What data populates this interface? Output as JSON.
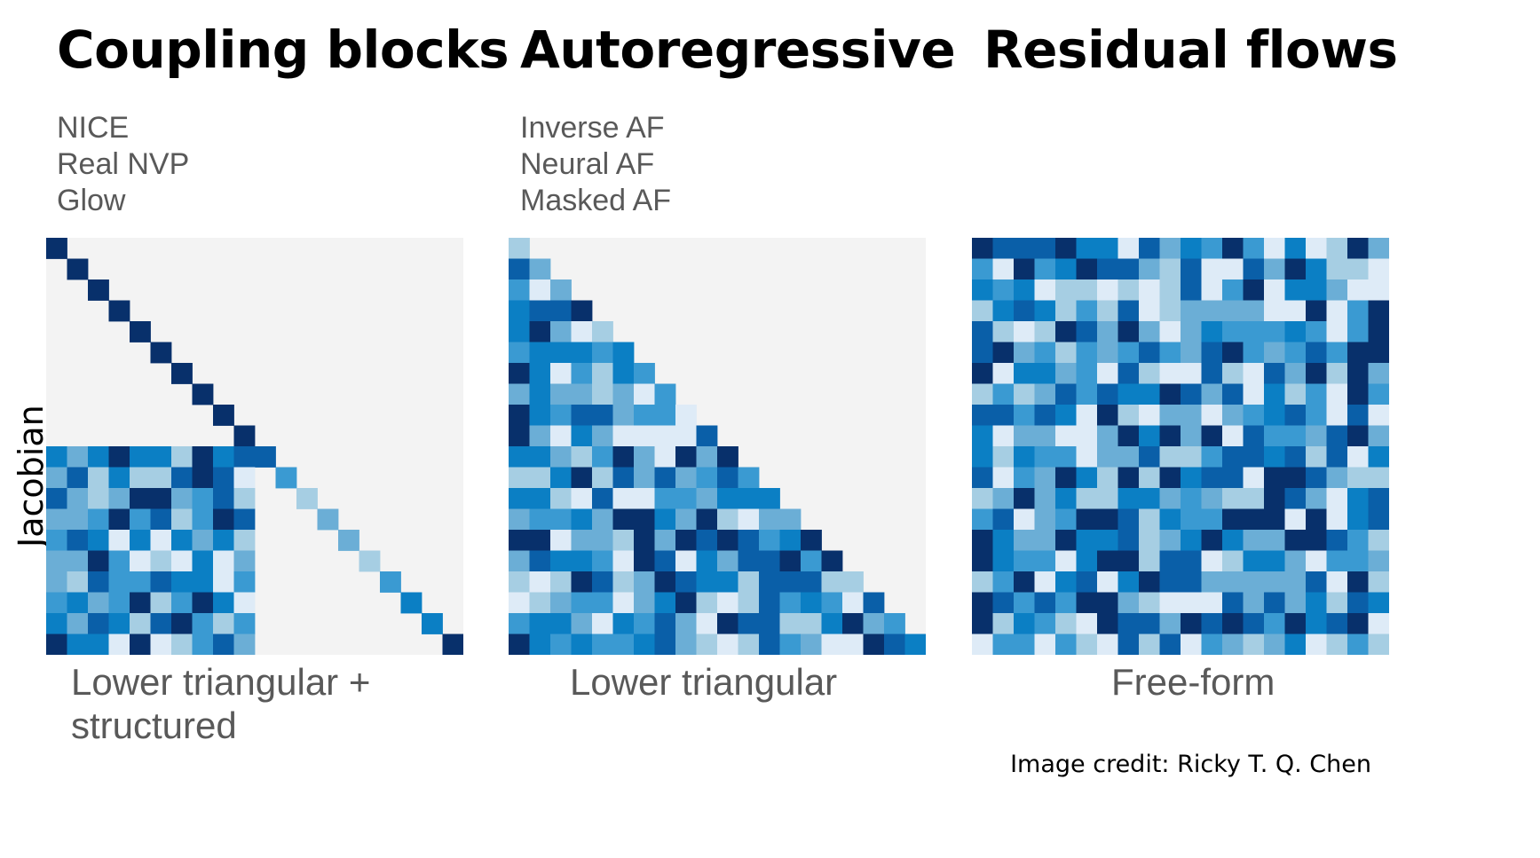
{
  "y_axis_label": "Jacobian",
  "columns": [
    {
      "title": "Coupling blocks",
      "methods": [
        "NICE",
        "Real NVP",
        "Glow"
      ],
      "caption_lines": [
        "Lower triangular +",
        "structured"
      ]
    },
    {
      "title": "Autoregressive",
      "methods": [
        "Inverse AF",
        "Neural AF",
        "Masked AF"
      ],
      "caption_lines": [
        "Lower triangular"
      ]
    },
    {
      "title": "Residual flows",
      "methods": [],
      "caption_lines": [
        "Free-form"
      ]
    }
  ],
  "credit": "Image credit: Ricky T. Q. Chen",
  "colors": {
    "palette": [
      "#deebf7",
      "#a6cee3",
      "#6baed6",
      "#3a9ad2",
      "#0b7fc4",
      "#0a5fa8",
      "#08306b"
    ],
    "background": "#f3f3f3"
  },
  "matrix_size": 20
}
